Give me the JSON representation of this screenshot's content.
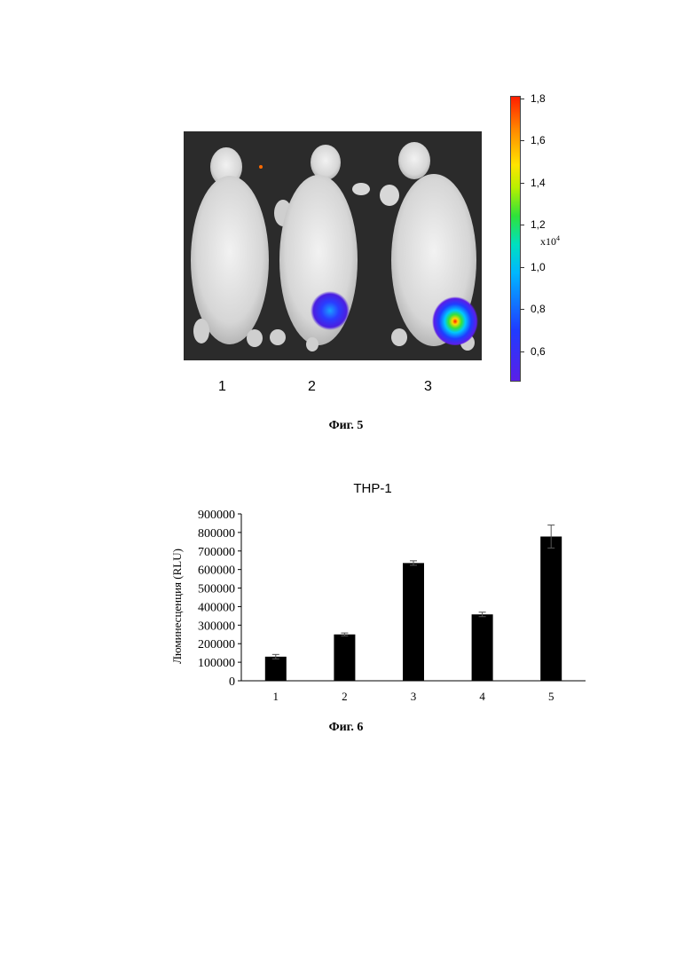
{
  "figure5": {
    "caption": "Фиг. 5",
    "mouse_labels": [
      "1",
      "2",
      "3"
    ],
    "colorbar": {
      "ticks": [
        "1,8",
        "1,6",
        "1,4",
        "1,2",
        "1,0",
        "0,8",
        "0,6"
      ],
      "multiplier_base": "x10",
      "multiplier_exp": "4"
    }
  },
  "figure6": {
    "caption": "Фиг. 6",
    "chart_data": {
      "type": "bar",
      "title": "THP-1",
      "ylabel": "Люминесценция (RLU)",
      "xlabel": "",
      "categories": [
        "1",
        "2",
        "3",
        "4",
        "5"
      ],
      "values": [
        130000,
        250000,
        635000,
        358000,
        778000
      ],
      "errors": [
        12000,
        8000,
        12000,
        12000,
        62000
      ],
      "ylim": [
        0,
        900000
      ],
      "yticks": [
        0,
        100000,
        200000,
        300000,
        400000,
        500000,
        600000,
        700000,
        800000,
        900000
      ],
      "ytick_labels": [
        "0",
        "100000",
        "200000",
        "300000",
        "400000",
        "500000",
        "600000",
        "700000",
        "800000",
        "900000"
      ],
      "bar_color": "#000000",
      "grid": false
    }
  }
}
